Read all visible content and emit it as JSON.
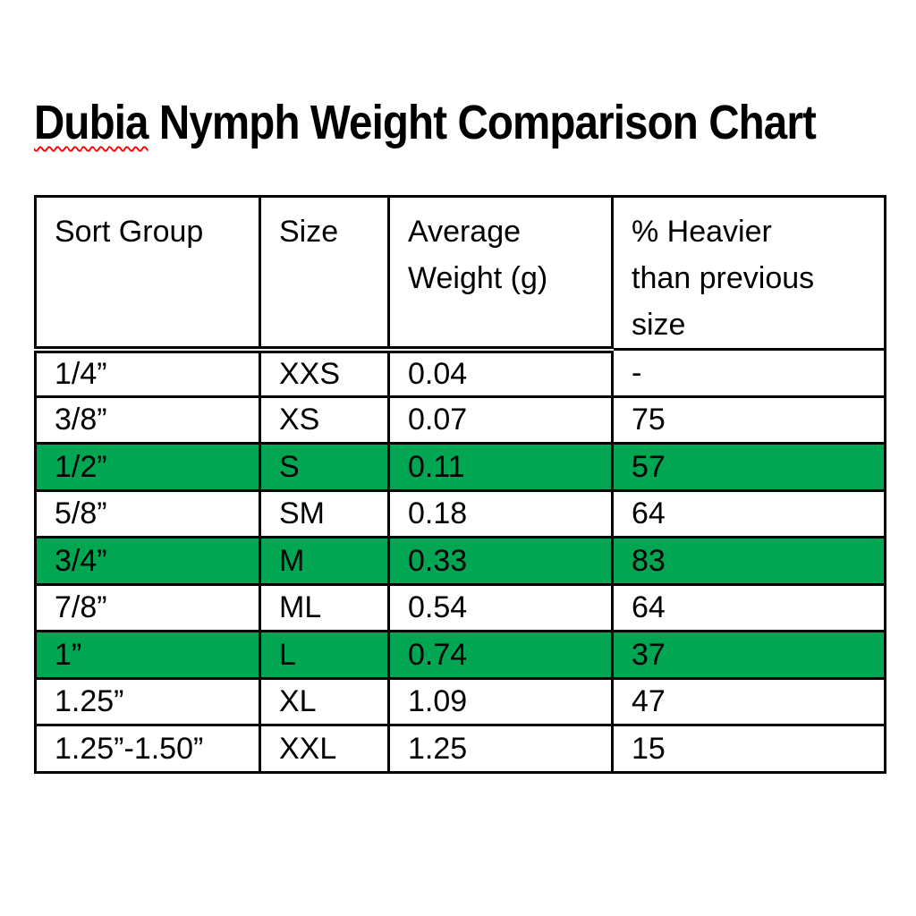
{
  "title": {
    "full_text": "Dubia Nymph Weight Comparison Chart",
    "misspelled_word": "Dubia",
    "rest": " Nymph Weight Comparison Chart",
    "squiggle_color": "#ff0000"
  },
  "table": {
    "columns": [
      {
        "label": "Sort Group"
      },
      {
        "label": "Size"
      },
      {
        "label": "Average Weight (g)"
      },
      {
        "label": "% Heavier than previous size"
      }
    ],
    "highlight_color": "#00A651",
    "border_color": "#000000",
    "rows": [
      {
        "sort_group": "1/4”",
        "size": "XXS",
        "avg_weight": "0.04",
        "pct_heavier": "-",
        "highlighted": false
      },
      {
        "sort_group": "3/8”",
        "size": "XS",
        "avg_weight": "0.07",
        "pct_heavier": "75",
        "highlighted": false
      },
      {
        "sort_group": "1/2”",
        "size": "S",
        "avg_weight": "0.11",
        "pct_heavier": "57",
        "highlighted": true
      },
      {
        "sort_group": "5/8”",
        "size": "SM",
        "avg_weight": "0.18",
        "pct_heavier": "64",
        "highlighted": false
      },
      {
        "sort_group": "3/4”",
        "size": "M",
        "avg_weight": "0.33",
        "pct_heavier": "83",
        "highlighted": true
      },
      {
        "sort_group": "7/8”",
        "size": "ML",
        "avg_weight": "0.54",
        "pct_heavier": "64",
        "highlighted": false
      },
      {
        "sort_group": "1”",
        "size": "L",
        "avg_weight": "0.74",
        "pct_heavier": "37",
        "highlighted": true
      },
      {
        "sort_group": "1.25”",
        "size": "XL",
        "avg_weight": "1.09",
        "pct_heavier": "47",
        "highlighted": false
      },
      {
        "sort_group": "1.25”-1.50”",
        "size": "XXL",
        "avg_weight": "1.25",
        "pct_heavier": "15",
        "highlighted": false
      }
    ]
  }
}
